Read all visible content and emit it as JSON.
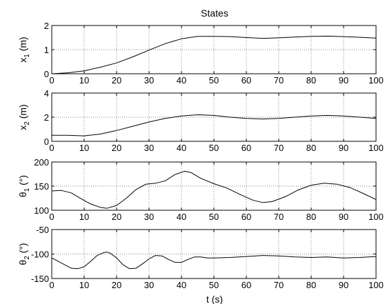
{
  "figure": {
    "title": "States",
    "xlabel": "t (s)"
  },
  "chart_data": [
    {
      "type": "line",
      "title": "States",
      "xlabel": "",
      "ylabel": "x_1 (m)",
      "ylabel_main": "x",
      "ylabel_sub": "1",
      "ylabel_rest": " (m)",
      "xlim": [
        0,
        100
      ],
      "ylim": [
        0,
        2
      ],
      "xticks": [
        0,
        10,
        20,
        30,
        40,
        50,
        60,
        70,
        80,
        90,
        100
      ],
      "yticks": [
        0,
        1,
        2
      ],
      "grid": true,
      "series": [
        {
          "color": "#000000",
          "x": [
            0,
            5,
            10,
            15,
            20,
            25,
            30,
            35,
            40,
            45,
            50,
            55,
            60,
            65,
            70,
            75,
            80,
            85,
            90,
            95,
            100
          ],
          "y": [
            0.0,
            0.04,
            0.12,
            0.27,
            0.45,
            0.7,
            0.98,
            1.25,
            1.45,
            1.55,
            1.55,
            1.54,
            1.5,
            1.47,
            1.49,
            1.52,
            1.55,
            1.56,
            1.54,
            1.51,
            1.48
          ]
        }
      ]
    },
    {
      "type": "line",
      "xlabel": "",
      "ylabel": "x_2 (m)",
      "ylabel_main": "x",
      "ylabel_sub": "2",
      "ylabel_rest": " (m)",
      "xlim": [
        0,
        100
      ],
      "ylim": [
        0,
        4
      ],
      "xticks": [
        0,
        10,
        20,
        30,
        40,
        50,
        60,
        70,
        80,
        90,
        100
      ],
      "yticks": [
        0,
        2,
        4
      ],
      "grid": true,
      "series": [
        {
          "color": "#000000",
          "x": [
            0,
            5,
            10,
            15,
            20,
            25,
            30,
            35,
            40,
            45,
            50,
            55,
            60,
            65,
            70,
            75,
            80,
            85,
            90,
            95,
            100
          ],
          "y": [
            0.5,
            0.5,
            0.45,
            0.6,
            0.9,
            1.25,
            1.6,
            1.9,
            2.1,
            2.2,
            2.15,
            2.0,
            1.9,
            1.85,
            1.9,
            2.0,
            2.1,
            2.15,
            2.1,
            2.0,
            1.9
          ]
        }
      ]
    },
    {
      "type": "line",
      "xlabel": "",
      "ylabel": "θ_1 (°)",
      "ylabel_main": "θ",
      "ylabel_sub": "1",
      "ylabel_rest": " (°)",
      "xlim": [
        0,
        100
      ],
      "ylim": [
        100,
        200
      ],
      "xticks": [
        0,
        10,
        20,
        30,
        40,
        50,
        60,
        70,
        80,
        90,
        100
      ],
      "yticks": [
        100,
        150,
        200
      ],
      "grid": true,
      "series": [
        {
          "color": "#000000",
          "x": [
            0,
            3,
            6,
            9,
            12,
            15,
            17,
            20,
            23,
            26,
            29,
            32,
            35,
            38,
            41,
            43,
            46,
            50,
            54,
            58,
            62,
            65,
            68,
            72,
            76,
            80,
            84,
            88,
            92,
            96,
            100
          ],
          "y": [
            140,
            141,
            136,
            124,
            113,
            106,
            104,
            110,
            125,
            143,
            154,
            156,
            161,
            174,
            181,
            178,
            166,
            155,
            146,
            133,
            121,
            116,
            118,
            128,
            142,
            152,
            156,
            154,
            147,
            135,
            122
          ]
        }
      ]
    },
    {
      "type": "line",
      "xlabel": "t (s)",
      "ylabel": "θ_2 (°)",
      "ylabel_main": "θ",
      "ylabel_sub": "2",
      "ylabel_rest": " (°)",
      "xlim": [
        0,
        100
      ],
      "ylim": [
        -150,
        -50
      ],
      "xticks": [
        0,
        10,
        20,
        30,
        40,
        50,
        60,
        70,
        80,
        90,
        100
      ],
      "yticks": [
        -150,
        -100,
        -50
      ],
      "grid": true,
      "series": [
        {
          "color": "#000000",
          "x": [
            0,
            2,
            4,
            6,
            8,
            10,
            12,
            14,
            16,
            17,
            18,
            20,
            22,
            24,
            26,
            28,
            30,
            32,
            34,
            36,
            38,
            40,
            42,
            44,
            46,
            48,
            50,
            55,
            60,
            65,
            70,
            75,
            80,
            85,
            90,
            95,
            100
          ],
          "y": [
            -108,
            -115,
            -122,
            -129,
            -130,
            -126,
            -115,
            -103,
            -97,
            -96,
            -98,
            -108,
            -122,
            -130,
            -129,
            -120,
            -110,
            -103,
            -104,
            -111,
            -117,
            -117,
            -111,
            -106,
            -106,
            -108,
            -108,
            -107,
            -105,
            -103,
            -104,
            -106,
            -107,
            -106,
            -108,
            -107,
            -105
          ]
        }
      ]
    }
  ]
}
